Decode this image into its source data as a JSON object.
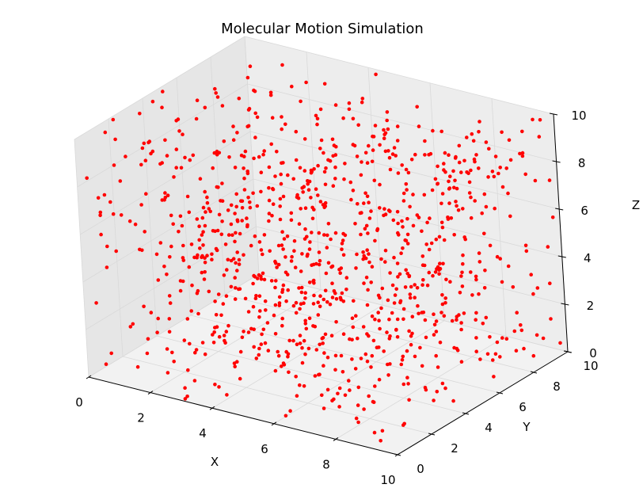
{
  "chart_data": {
    "type": "scatter",
    "projection": "3d",
    "title": "Molecular Motion Simulation",
    "xlabel": "X",
    "ylabel": "Y",
    "zlabel": "Z",
    "xlim": [
      0,
      10
    ],
    "ylim": [
      0,
      10
    ],
    "zlim": [
      0,
      10
    ],
    "xticks": [
      "0",
      "2",
      "4",
      "6",
      "8",
      "10"
    ],
    "yticks": [
      "0",
      "2",
      "4",
      "6",
      "8",
      "10"
    ],
    "zticks": [
      "0",
      "2",
      "4",
      "6",
      "8",
      "10"
    ],
    "grid": true,
    "series": [
      {
        "color": "#ff0000",
        "marker": "circle",
        "point_count": 1000,
        "distribution": "uniform",
        "points": []
      }
    ]
  }
}
